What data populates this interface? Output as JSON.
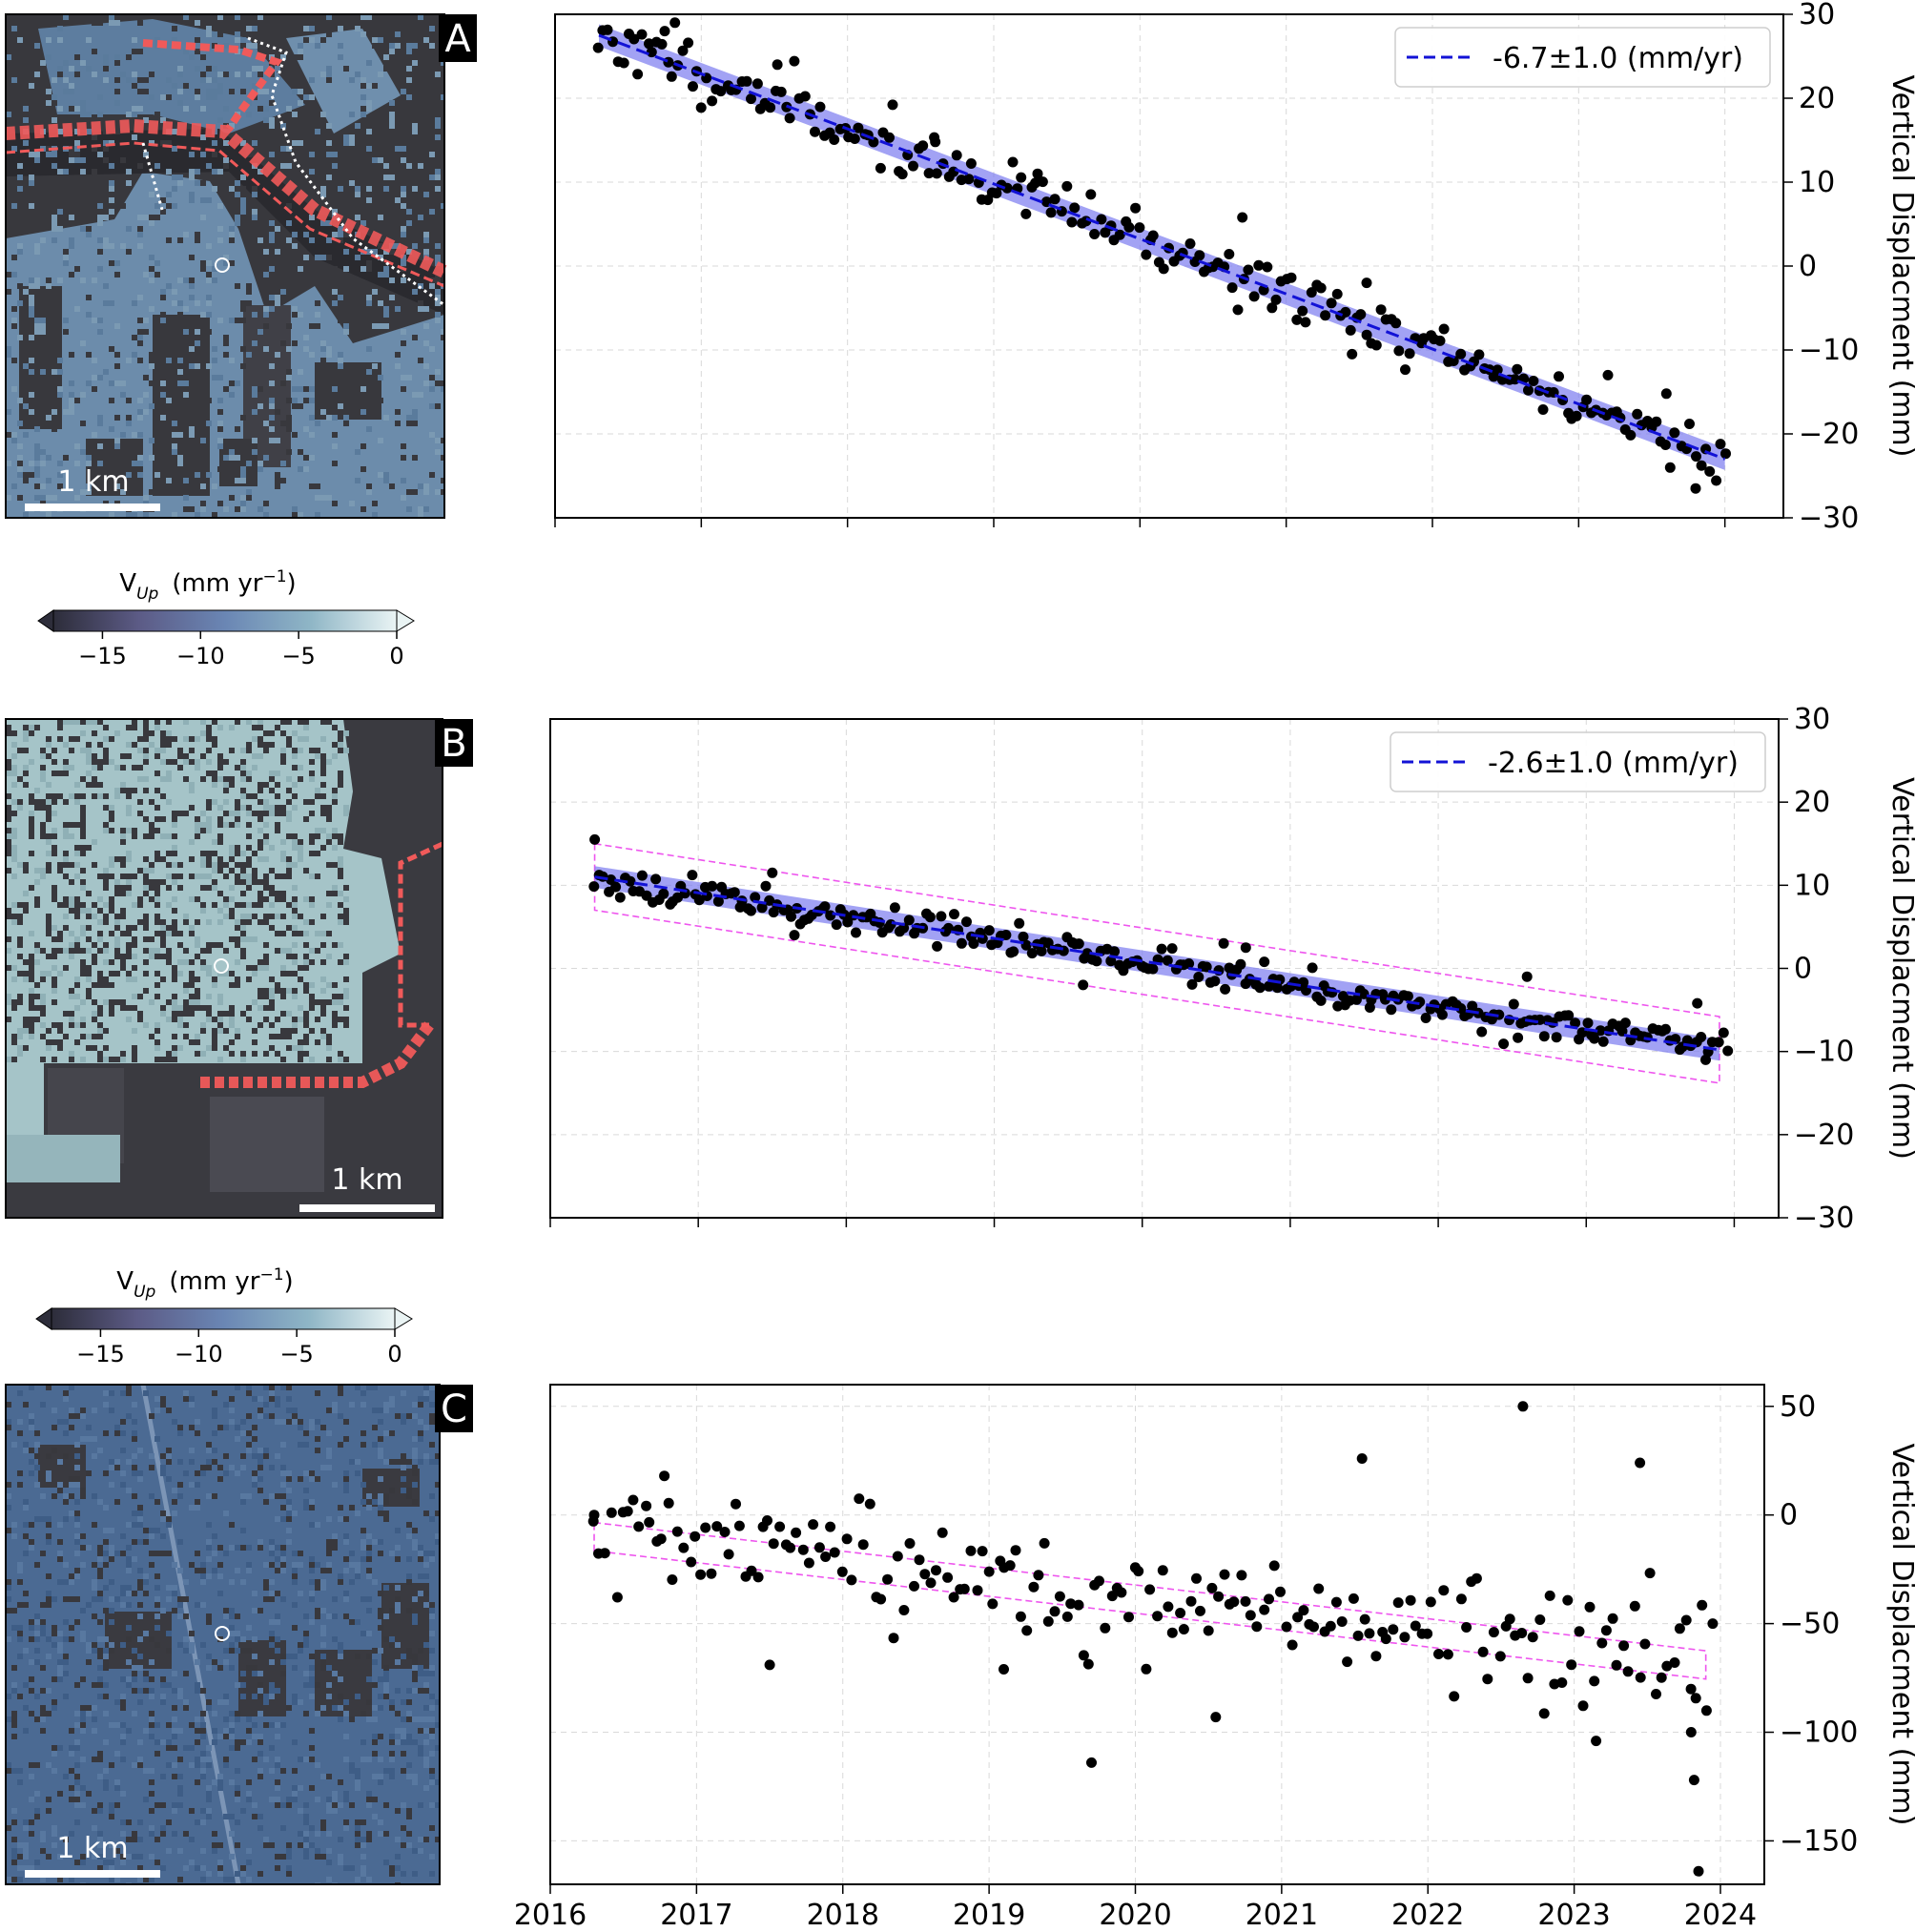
{
  "colors": {
    "map_dark": "#38383d",
    "map_blue_a": "#6787a6",
    "map_blue_b": "#a5c4c8",
    "map_blue_c": "#4b6a93",
    "road": "#f05a5a",
    "trend": "#1212d6",
    "band": "#7a7af0",
    "envelope": "#ee55ee",
    "points": "#000000"
  },
  "shared_x_axis": {
    "ticks": [
      "2016",
      "2017",
      "2018",
      "2019",
      "2020",
      "2021",
      "2022",
      "2023",
      "2024"
    ]
  },
  "panels": [
    {
      "label": "A",
      "scalebar": "1 km",
      "colorbar": {
        "label_main": "V",
        "label_sub": "Up",
        "label_units": "(mm yr",
        "label_exp": "−1",
        "label_close": ")",
        "ticks": [
          "−15",
          "−10",
          "−5",
          "0"
        ]
      }
    },
    {
      "label": "B",
      "scalebar": "1 km",
      "colorbar": {
        "label_main": "V",
        "label_sub": "Up",
        "label_units": "(mm yr",
        "label_exp": "−1",
        "label_close": ")",
        "ticks": [
          "−15",
          "−10",
          "−5",
          "0"
        ]
      }
    },
    {
      "label": "C",
      "scalebar": "1 km"
    }
  ],
  "chart_data": [
    {
      "type": "scatter",
      "panel": "A",
      "ylabel": "Vertical Displacment (mm)",
      "xlim": [
        2016.0,
        2024.4
      ],
      "ylim": [
        -30,
        30
      ],
      "yticks": [
        "30",
        "20",
        "10",
        "0",
        "−10",
        "−20",
        "−30"
      ],
      "legend": "-6.7±1.0 (mm/yr)",
      "legend_position": "top-right",
      "trend": {
        "x": [
          2016.3,
          2024.0
        ],
        "y": [
          27.5,
          -23.0
        ]
      },
      "band_halfwidth": 1.3,
      "grid": true,
      "points": {
        "start": 2016.3,
        "end": 2024.0,
        "count": 230,
        "seed": 11,
        "noise": 1.6,
        "outliers": [
          [
            2016.75,
            28.0
          ],
          [
            2016.82,
            29.0
          ],
          [
            2017.52,
            24.0
          ],
          [
            2018.6,
            14.8
          ],
          [
            2019.3,
            11.0
          ],
          [
            2020.7,
            5.8
          ],
          [
            2021.45,
            -10.5
          ],
          [
            2021.55,
            -2.0
          ],
          [
            2023.8,
            -26.5
          ],
          [
            2023.2,
            -13.0
          ],
          [
            2023.6,
            -15.2
          ]
        ]
      }
    },
    {
      "type": "scatter",
      "panel": "B",
      "ylabel": "Vertical Displacment (mm)",
      "xlim": [
        2016.0,
        2024.3
      ],
      "ylim": [
        -30,
        30
      ],
      "yticks": [
        "30",
        "20",
        "10",
        "0",
        "−10",
        "−20",
        "−30"
      ],
      "legend": "-2.6±1.0 (mm/yr)",
      "legend_position": "top-right",
      "trend": {
        "x": [
          2016.3,
          2023.9
        ],
        "y": [
          11.0,
          -9.8
        ]
      },
      "band_halfwidth": 1.3,
      "envelope_halfwidth": 4.0,
      "grid": true,
      "points": {
        "start": 2016.3,
        "end": 2023.95,
        "count": 260,
        "seed": 23,
        "noise": 0.9,
        "outliers": [
          [
            2016.3,
            15.5
          ],
          [
            2017.5,
            11.5
          ],
          [
            2017.65,
            4.0
          ],
          [
            2020.55,
            3.0
          ],
          [
            2020.7,
            2.5
          ],
          [
            2022.6,
            -1.0
          ],
          [
            2023.75,
            -4.2
          ],
          [
            2019.6,
            -2.0
          ]
        ]
      }
    },
    {
      "type": "scatter",
      "panel": "C",
      "ylabel": "Vertical Displacment (mm)",
      "xlim": [
        2016.0,
        2024.3
      ],
      "ylim": [
        -170,
        60
      ],
      "yticks": [
        "50",
        "0",
        "−50",
        "−100",
        "−150"
      ],
      "trend": {
        "x": [
          2016.3,
          2023.9
        ],
        "y": [
          -10.0,
          -69.0
        ]
      },
      "envelope_halfwidth": 6.5,
      "grid": true,
      "points": {
        "start": 2016.3,
        "end": 2023.95,
        "count": 200,
        "seed": 37,
        "noise": 13.0,
        "outliers": [
          [
            2016.3,
            0.0
          ],
          [
            2016.78,
            18.0
          ],
          [
            2017.5,
            -69.0
          ],
          [
            2019.1,
            -71.0
          ],
          [
            2019.7,
            -114.0
          ],
          [
            2020.55,
            -93.0
          ],
          [
            2021.55,
            26.0
          ],
          [
            2022.65,
            50.0
          ],
          [
            2023.45,
            24.0
          ],
          [
            2023.8,
            -100.0
          ],
          [
            2023.82,
            -122.0
          ],
          [
            2023.85,
            -164.0
          ],
          [
            2023.15,
            -104.0
          ]
        ]
      }
    }
  ]
}
